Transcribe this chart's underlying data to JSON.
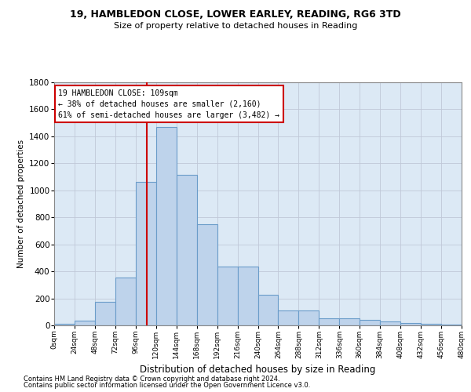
{
  "title1": "19, HAMBLEDON CLOSE, LOWER EARLEY, READING, RG6 3TD",
  "title2": "Size of property relative to detached houses in Reading",
  "xlabel": "Distribution of detached houses by size in Reading",
  "ylabel": "Number of detached properties",
  "footnote1": "Contains HM Land Registry data © Crown copyright and database right 2024.",
  "footnote2": "Contains public sector information licensed under the Open Government Licence v3.0.",
  "annotation_line1": "19 HAMBLEDON CLOSE: 109sqm",
  "annotation_line2": "← 38% of detached houses are smaller (2,160)",
  "annotation_line3": "61% of semi-detached houses are larger (3,482) →",
  "property_sqm": 109,
  "bin_edges": [
    0,
    24,
    48,
    72,
    96,
    120,
    144,
    168,
    192,
    216,
    240,
    264,
    288,
    312,
    336,
    360,
    384,
    408,
    432,
    456,
    480
  ],
  "bar_values": [
    10,
    35,
    175,
    355,
    1060,
    1470,
    1115,
    750,
    435,
    435,
    225,
    110,
    110,
    50,
    50,
    40,
    30,
    20,
    10,
    5
  ],
  "bar_color": "#bed3eb",
  "bar_edge_color": "#6a9cc9",
  "vline_color": "#cc0000",
  "background_color": "#ffffff",
  "axes_bg_color": "#dce9f5",
  "grid_color": "#c0c8d8",
  "ylim": [
    0,
    1800
  ],
  "yticks": [
    0,
    200,
    400,
    600,
    800,
    1000,
    1200,
    1400,
    1600,
    1800
  ]
}
